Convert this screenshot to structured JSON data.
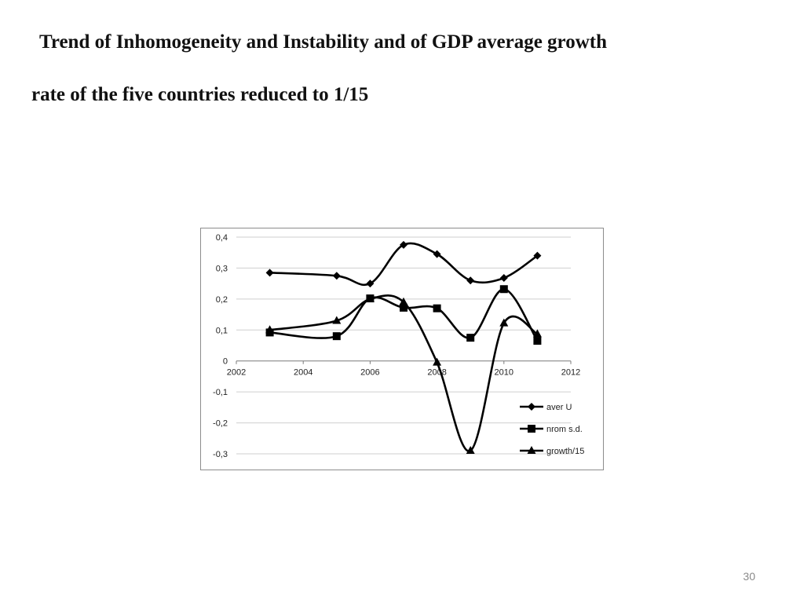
{
  "slide": {
    "title_line_1": "Trend of Inhomogeneity and Instability and of GDP average  growth",
    "title_line_2": "rate of the five countries reduced to 1/15",
    "page_number": "30"
  },
  "chart_data": {
    "type": "line",
    "title": "",
    "xlabel": "",
    "ylabel": "",
    "xlim": [
      2002,
      2012
    ],
    "ylim": [
      -0.3,
      0.4
    ],
    "x_ticks": [
      "2002",
      "2004",
      "2006",
      "2008",
      "2010",
      "2012"
    ],
    "y_ticks": [
      "0,4",
      "0,3",
      "0,2",
      "0,1",
      "0",
      "-0,1",
      "-0,2",
      "-0,3"
    ],
    "grid": "horizontal",
    "smooth": true,
    "legend_position": "bottom-right",
    "line_color": "#000000",
    "series": [
      {
        "name": "aver U",
        "marker": "diamond",
        "x": [
          2003,
          2005,
          2006,
          2007,
          2008,
          2009,
          2010,
          2011
        ],
        "y": [
          0.285,
          0.275,
          0.25,
          0.375,
          0.345,
          0.26,
          0.268,
          0.34
        ]
      },
      {
        "name": "nrom s.d.",
        "marker": "square",
        "x": [
          2003,
          2005,
          2006,
          2007,
          2008,
          2009,
          2010,
          2011
        ],
        "y": [
          0.092,
          0.08,
          0.202,
          0.172,
          0.17,
          0.075,
          0.232,
          0.065
        ]
      },
      {
        "name": "growth/15",
        "marker": "triangle",
        "x": [
          2003,
          2005,
          2006,
          2007,
          2008,
          2009,
          2010,
          2011
        ],
        "y": [
          0.1,
          0.13,
          0.2,
          0.19,
          -0.005,
          -0.29,
          0.122,
          0.087
        ]
      }
    ]
  }
}
